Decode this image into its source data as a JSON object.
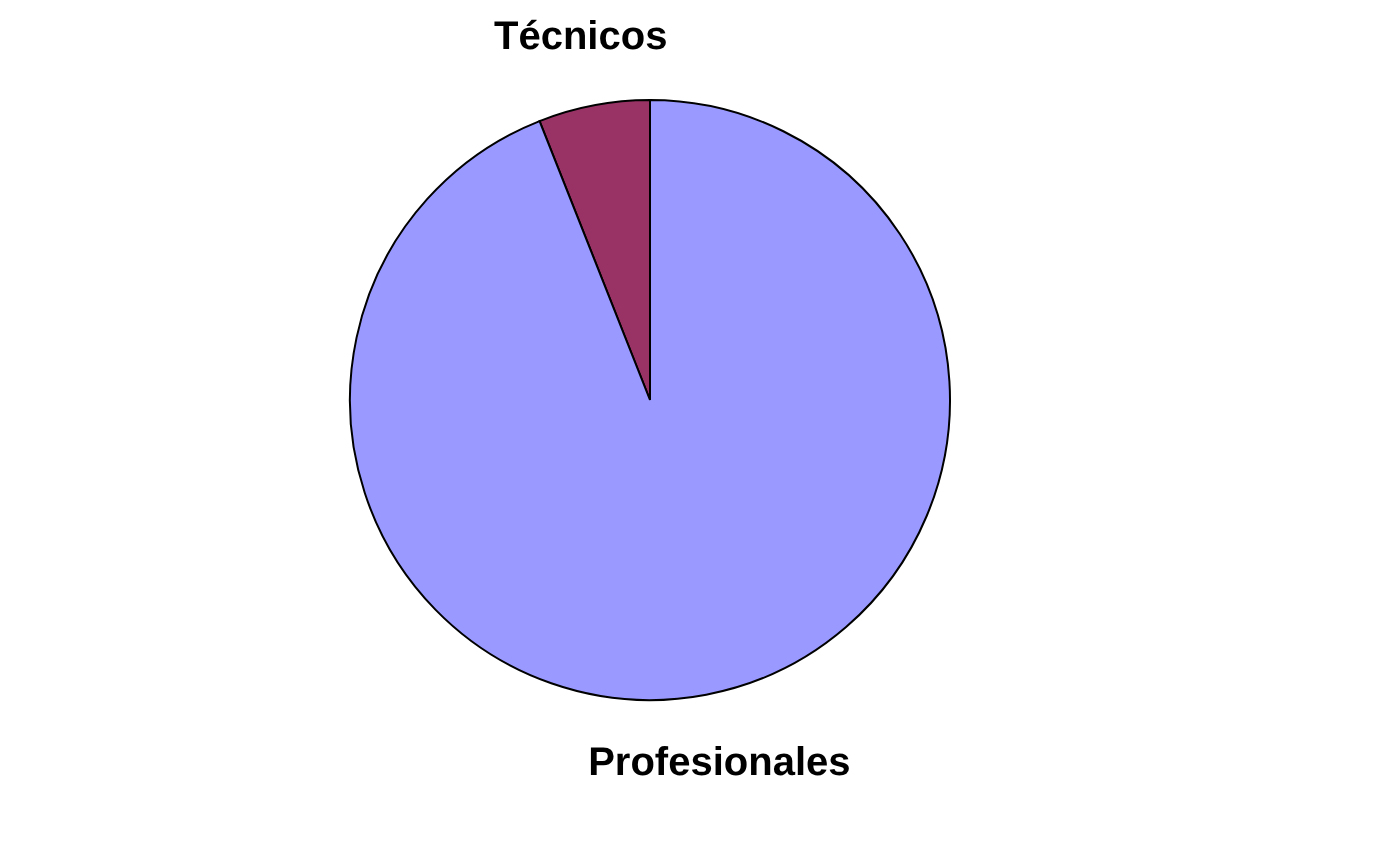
{
  "chart_data": {
    "type": "pie",
    "categories": [
      "Técnicos",
      "Profesionales"
    ],
    "values": [
      6,
      94
    ],
    "colors": [
      "#993366",
      "#9999ff"
    ],
    "legend": false
  }
}
